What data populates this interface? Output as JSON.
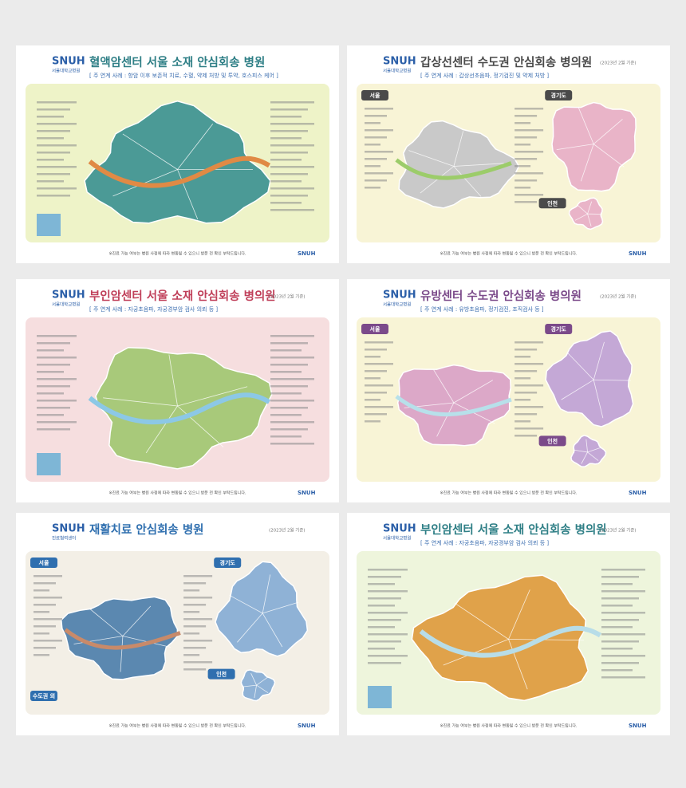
{
  "posters": [
    {
      "logo": "SNUH",
      "logo_sub": "서울대학교병원",
      "title": "혈액암센터 서울 소재 안심회송 병원",
      "subtitle": "[ 주 연계 사례 : 항암 이후 보존적 치료, 수혈, 약제 처방 및 투약, 호스피스 케어 ]",
      "regions": [],
      "footnote": "※진료 가능 여부는 병원 사정에 따라 변동될 수 있으니 방문 전 확인 부탁드립니다."
    },
    {
      "logo": "SNUH",
      "logo_sub": "서울대학교병원",
      "title": "갑상선센터 수도권 안심회송 병의원",
      "date": "(2023년 2월 기준)",
      "subtitle": "[ 주 연계 사례 : 갑상선초음파, 정기검진 및 약제 처방 ]",
      "regions": [
        "서울",
        "경기도",
        "인천"
      ],
      "footnote": "※진료 가능 여부는 병원 사정에 따라 변동될 수 있으니 방문 전 확인 부탁드립니다."
    },
    {
      "logo": "SNUH",
      "logo_sub": "서울대학교병원",
      "title": "부인암센터 서울 소재 안심회송 병의원",
      "date": "(2023년 2월 기준)",
      "subtitle": "[ 주 연계 사례 : 자궁초음파, 자궁경부암 검사 의뢰 등 ]",
      "regions": [],
      "footnote": "※진료 가능 여부는 병원 사정에 따라 변동될 수 있으니 방문 전 확인 부탁드립니다."
    },
    {
      "logo": "SNUH",
      "logo_sub": "서울대학교병원",
      "title": "유방센터 수도권 안심회송 병의원",
      "date": "(2023년 2월 기준)",
      "subtitle": "[ 주 연계 사례 : 유방초음파, 정기검진, 조직검사 등 ]",
      "regions": [
        "서울",
        "경기도",
        "인천"
      ],
      "footnote": "※진료 가능 여부는 병원 사정에 따라 변동될 수 있으니 방문 전 확인 부탁드립니다."
    },
    {
      "logo": "SNUH",
      "logo_sub": "진료협력센터",
      "title": "재활치료 안심회송 병원",
      "date": "(2023년 2월 기준)",
      "subtitle": "",
      "regions": [
        "서울",
        "경기도",
        "인천",
        "수도권 외"
      ],
      "footnote": "※진료 가능 여부는 병원 사정에 따라 변동될 수 있으니 방문 전 확인 부탁드립니다."
    },
    {
      "logo": "SNUH",
      "logo_sub": "서울대학교병원",
      "title": "부인암센터 서울 소재 안심회송 병의원",
      "date": "(2023년 2월 기준)",
      "subtitle": "[ 주 연계 사례 : 자궁초음파, 자궁경부암 검사 의뢰 등 ]",
      "regions": [],
      "footnote": "※진료 가능 여부는 병원 사정에 따라 변동될 수 있으니 방문 전 확인 부탁드립니다."
    }
  ]
}
